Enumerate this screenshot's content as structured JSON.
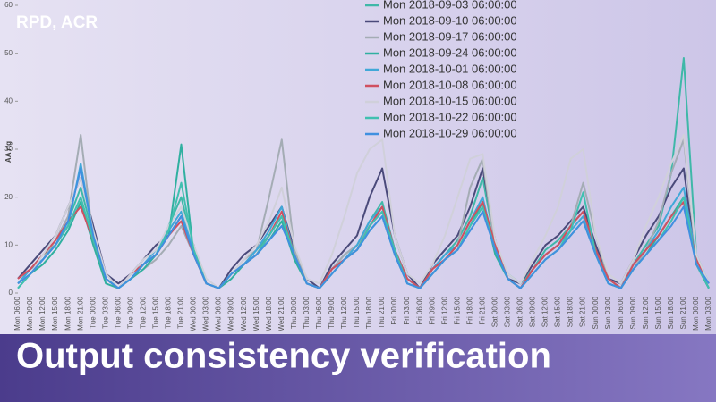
{
  "slide": {
    "label": "RPD, ACR",
    "caption": "Output consistency verification"
  },
  "chart_data": {
    "type": "line",
    "y_label": "AA rtg",
    "categories": [
      "Mon 06:00",
      "Mon 09:00",
      "Mon 12:00",
      "Mon 15:00",
      "Mon 18:00",
      "Mon 21:00",
      "Tue 00:00",
      "Tue 03:00",
      "Tue 06:00",
      "Tue 09:00",
      "Tue 12:00",
      "Tue 15:00",
      "Tue 18:00",
      "Tue 21:00",
      "Wed 00:00",
      "Wed 03:00",
      "Wed 06:00",
      "Wed 09:00",
      "Wed 12:00",
      "Wed 15:00",
      "Wed 18:00",
      "Wed 21:00",
      "Thu 00:00",
      "Thu 03:00",
      "Thu 06:00",
      "Thu 09:00",
      "Thu 12:00",
      "Thu 15:00",
      "Thu 18:00",
      "Thu 21:00",
      "Fri 00:00",
      "Fri 03:00",
      "Fri 06:00",
      "Fri 09:00",
      "Fri 12:00",
      "Fri 15:00",
      "Fri 18:00",
      "Fri 21:00",
      "Sat 00:00",
      "Sat 03:00",
      "Sat 06:00",
      "Sat 09:00",
      "Sat 12:00",
      "Sat 15:00",
      "Sat 18:00",
      "Sat 21:00",
      "Sun 00:00",
      "Sun 03:00",
      "Sun 06:00",
      "Sun 09:00",
      "Sun 12:00",
      "Sun 15:00",
      "Sun 18:00",
      "Sun 21:00",
      "Mon 00:00",
      "Mon 03:00"
    ],
    "ylim": [
      0,
      60
    ],
    "yticks": [
      0,
      10,
      20,
      30,
      40,
      50,
      60
    ],
    "grid": false,
    "series": [
      {
        "name": "Mon 2018-09-03 06:00:00",
        "color": "#3fb8a8",
        "values": [
          2,
          5,
          8,
          10,
          15,
          22,
          12,
          3,
          1,
          3,
          6,
          8,
          14,
          20,
          9,
          2,
          1,
          4,
          6,
          9,
          12,
          16,
          8,
          2,
          1,
          5,
          8,
          10,
          15,
          19,
          9,
          3,
          1,
          5,
          8,
          11,
          16,
          24,
          10,
          4,
          2,
          5,
          9,
          11,
          14,
          17,
          9,
          3,
          1,
          6,
          10,
          14,
          25,
          49,
          8,
          2
        ]
      },
      {
        "name": "Mon 2018-09-10 06:00:00",
        "color": "#4a4a7a",
        "values": [
          3,
          6,
          9,
          12,
          18,
          24,
          14,
          4,
          2,
          4,
          7,
          10,
          12,
          16,
          10,
          2,
          1,
          5,
          8,
          10,
          14,
          18,
          9,
          3,
          1,
          6,
          9,
          12,
          20,
          26,
          12,
          4,
          1,
          6,
          9,
          12,
          18,
          26,
          11,
          3,
          2,
          6,
          10,
          12,
          15,
          18,
          10,
          3,
          2,
          7,
          12,
          16,
          22,
          26,
          6,
          1
        ]
      },
      {
        "name": "Mon 2018-09-17 06:00:00",
        "color": "#a4acb4",
        "values": [
          2,
          4,
          7,
          11,
          16,
          33,
          11,
          3,
          1,
          3,
          5,
          7,
          10,
          14,
          8,
          2,
          1,
          4,
          7,
          9,
          20,
          32,
          9,
          2,
          1,
          5,
          8,
          10,
          14,
          17,
          8,
          3,
          1,
          4,
          7,
          10,
          22,
          28,
          9,
          3,
          1,
          5,
          8,
          10,
          14,
          23,
          12,
          3,
          1,
          5,
          9,
          15,
          25,
          32,
          7,
          2
        ]
      },
      {
        "name": "Mon 2018-09-24 06:00:00",
        "color": "#30b0a0",
        "values": [
          1,
          4,
          6,
          9,
          13,
          19,
          10,
          2,
          1,
          3,
          5,
          8,
          12,
          31,
          8,
          2,
          1,
          3,
          6,
          8,
          11,
          15,
          7,
          2,
          1,
          4,
          7,
          9,
          13,
          16,
          8,
          2,
          1,
          4,
          7,
          9,
          14,
          19,
          8,
          3,
          1,
          4,
          7,
          9,
          12,
          15,
          8,
          2,
          1,
          5,
          8,
          12,
          16,
          20,
          6,
          1
        ]
      },
      {
        "name": "Mon 2018-10-01 06:00:00",
        "color": "#40a8d8",
        "values": [
          2,
          5,
          7,
          10,
          14,
          27,
          12,
          3,
          1,
          4,
          6,
          9,
          13,
          17,
          9,
          2,
          1,
          4,
          6,
          9,
          13,
          18,
          8,
          2,
          1,
          5,
          7,
          10,
          15,
          18,
          9,
          3,
          1,
          5,
          8,
          10,
          15,
          20,
          9,
          3,
          1,
          5,
          8,
          10,
          13,
          16,
          9,
          3,
          1,
          6,
          9,
          13,
          18,
          22,
          7,
          2
        ]
      },
      {
        "name": "Mon 2018-10-08 06:00:00",
        "color": "#d05060",
        "values": [
          3,
          5,
          8,
          11,
          15,
          18,
          11,
          3,
          1,
          4,
          6,
          8,
          12,
          15,
          8,
          2,
          1,
          4,
          6,
          8,
          12,
          17,
          8,
          2,
          1,
          5,
          7,
          9,
          14,
          18,
          9,
          3,
          1,
          5,
          7,
          10,
          15,
          19,
          10,
          3,
          1,
          5,
          8,
          10,
          14,
          17,
          9,
          3,
          1,
          6,
          9,
          12,
          16,
          19,
          7,
          2
        ]
      },
      {
        "name": "Mon 2018-10-15 06:00:00",
        "color": "#d0d0da",
        "values": [
          2,
          4,
          8,
          12,
          18,
          24,
          13,
          4,
          1,
          4,
          7,
          9,
          14,
          18,
          10,
          3,
          1,
          4,
          7,
          10,
          15,
          22,
          10,
          3,
          2,
          8,
          16,
          25,
          30,
          32,
          12,
          4,
          2,
          6,
          12,
          20,
          28,
          29,
          11,
          4,
          2,
          7,
          12,
          18,
          28,
          30,
          12,
          4,
          2,
          7,
          14,
          20,
          27,
          33,
          8,
          2
        ]
      },
      {
        "name": "Mon 2018-10-22 06:00:00",
        "color": "#40c0b0",
        "values": [
          1,
          4,
          7,
          10,
          14,
          20,
          11,
          3,
          1,
          3,
          6,
          8,
          13,
          23,
          9,
          2,
          1,
          4,
          6,
          8,
          12,
          16,
          8,
          2,
          1,
          4,
          7,
          9,
          14,
          17,
          9,
          2,
          1,
          4,
          7,
          9,
          14,
          18,
          9,
          3,
          1,
          4,
          7,
          9,
          13,
          21,
          8,
          2,
          1,
          5,
          8,
          11,
          15,
          20,
          6,
          1
        ]
      },
      {
        "name": "Mon 2018-10-29 06:00:00",
        "color": "#4090e0",
        "values": [
          2,
          4,
          7,
          10,
          15,
          26,
          12,
          3,
          1,
          3,
          6,
          8,
          12,
          16,
          8,
          2,
          1,
          4,
          6,
          8,
          11,
          14,
          8,
          2,
          1,
          4,
          7,
          9,
          13,
          16,
          8,
          2,
          1,
          4,
          7,
          9,
          13,
          17,
          9,
          3,
          1,
          4,
          7,
          9,
          12,
          15,
          8,
          2,
          1,
          5,
          8,
          11,
          14,
          18,
          6,
          2
        ]
      }
    ]
  }
}
